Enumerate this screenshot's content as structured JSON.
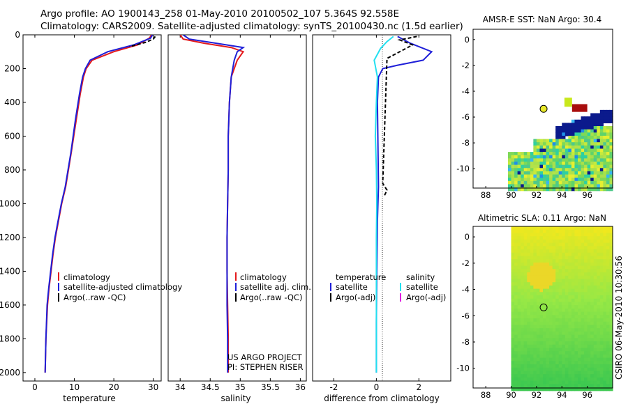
{
  "header": {
    "line1": "Argo profile: AO 1900143_258 01-May-2010 20100502_107 5.364S 92.558E",
    "line2": "Climatology: CARS2009. Satellite-adjusted climatology: synTS_20100430.nc (1.5d earlier)"
  },
  "credit": "CSIRO 06-May-2010 10:30:56",
  "colors": {
    "red": "#e41a1c",
    "blue": "#1f1fd8",
    "black": "#000000",
    "cyan": "#22e0f0",
    "magenta": "#e020e0"
  },
  "chart_data": [
    {
      "type": "line",
      "id": "temperature",
      "xlabel": "temperature",
      "ylabel": "",
      "xlim": [
        -3,
        32
      ],
      "ylim": [
        2050,
        0
      ],
      "y_inverted": true,
      "xticks": [
        0,
        10,
        20,
        30
      ],
      "yticks": [
        0,
        200,
        400,
        600,
        800,
        1000,
        1200,
        1400,
        1600,
        1800,
        2000
      ],
      "series": [
        {
          "name": "climatology",
          "color": "#e41a1c",
          "x": [
            29.6,
            29.0,
            26.0,
            20.0,
            14.5,
            13.0,
            12.3,
            11.5,
            10.5,
            9.2,
            7.8,
            6.8,
            6.0,
            5.2,
            4.6,
            4.1,
            3.6,
            3.2,
            2.8,
            2.6
          ],
          "y": [
            0,
            20,
            60,
            100,
            150,
            200,
            250,
            350,
            500,
            700,
            900,
            1000,
            1100,
            1200,
            1300,
            1400,
            1500,
            1600,
            1800,
            2000
          ]
        },
        {
          "name": "satellite-adjusted climatology",
          "color": "#1f1fd8",
          "x": [
            29.8,
            29.3,
            25.0,
            18.5,
            14.0,
            12.8,
            12.1,
            11.3,
            10.3,
            9.1,
            7.7,
            6.7,
            5.9,
            5.1,
            4.5,
            4.0,
            3.5,
            3.1,
            2.8,
            2.6
          ],
          "y": [
            0,
            20,
            60,
            100,
            150,
            200,
            250,
            350,
            500,
            700,
            900,
            1000,
            1100,
            1200,
            1300,
            1400,
            1500,
            1600,
            1800,
            2000
          ]
        },
        {
          "name": "Argo(..raw -QC)",
          "color": "#000000",
          "x": [
            30.5,
            30.0,
            28.0,
            24.0
          ],
          "y": [
            10,
            25,
            45,
            70
          ]
        }
      ],
      "legend": {
        "position": "bottom-right",
        "entries": [
          "climatology",
          "satellite-adjusted climatology",
          "Argo(..raw -QC)"
        ]
      }
    },
    {
      "type": "line",
      "id": "salinity",
      "xlabel": "salinity",
      "ylabel": "",
      "xlim": [
        33.8,
        36.1
      ],
      "ylim": [
        2050,
        0
      ],
      "y_inverted": true,
      "xticks": [
        34,
        34.5,
        35,
        35.5,
        36
      ],
      "tick_labels": [
        "34",
        "34.5",
        "35",
        "35.5",
        "36"
      ],
      "series": [
        {
          "name": "climatology",
          "color": "#e41a1c",
          "x": [
            34.0,
            34.05,
            34.4,
            34.85,
            35.05,
            34.95,
            34.85,
            34.82,
            34.8,
            34.8,
            34.79,
            34.78,
            34.78,
            34.79,
            34.8,
            34.8
          ],
          "y": [
            0,
            25,
            50,
            75,
            100,
            150,
            250,
            400,
            600,
            800,
            1000,
            1200,
            1400,
            1600,
            1800,
            2000
          ]
        },
        {
          "name": "satellite adj. clim.",
          "color": "#1f1fd8",
          "x": [
            34.05,
            34.15,
            34.6,
            35.05,
            34.95,
            34.9,
            34.85,
            34.82,
            34.8,
            34.8,
            34.79,
            34.78,
            34.78,
            34.78,
            34.79,
            34.79
          ],
          "y": [
            0,
            25,
            50,
            75,
            100,
            150,
            250,
            400,
            600,
            800,
            1000,
            1200,
            1400,
            1600,
            1800,
            2000
          ]
        }
      ],
      "annotations": [
        "US ARGO PROJECT",
        "PI: STEPHEN RISER"
      ],
      "legend": {
        "position": "bottom-right",
        "entries": [
          "climatology",
          "satellite adj. clim.",
          "Argo(..raw -QC)"
        ]
      }
    },
    {
      "type": "line",
      "id": "difference",
      "xlabel": "difference from climatology",
      "ylabel": "",
      "xlim": [
        -3.0,
        3.5
      ],
      "ylim": [
        2050,
        0
      ],
      "y_inverted": true,
      "xticks": [
        -2,
        0,
        2
      ],
      "tick_labels": [
        "-2",
        "0",
        "2"
      ],
      "series": [
        {
          "name": "temperature satellite",
          "color": "#1f1fd8",
          "x": [
            1.0,
            1.6,
            2.6,
            2.2,
            1.0,
            0.3,
            0.1,
            0.05,
            0.08,
            0.1,
            0.05,
            0.02,
            0.0,
            0.0
          ],
          "y": [
            10,
            50,
            100,
            150,
            180,
            200,
            250,
            400,
            700,
            900,
            1100,
            1400,
            1700,
            2000
          ]
        },
        {
          "name": "salinity satellite",
          "color": "#22e0f0",
          "x": [
            0.8,
            0.5,
            0.2,
            -0.1,
            0.05,
            0.0,
            -0.05,
            0.0,
            0.02,
            0.0,
            0.0,
            0.0,
            0.0
          ],
          "y": [
            10,
            40,
            80,
            150,
            250,
            400,
            600,
            800,
            1000,
            1200,
            1500,
            1800,
            2000
          ]
        },
        {
          "name": "temperature Argo(-adj)",
          "color": "#000000",
          "x": [
            1.9,
            1.1,
            1.7,
            0.5,
            0.3,
            0.5,
            0.35
          ],
          "y": [
            10,
            30,
            60,
            140,
            880,
            920,
            960
          ]
        }
      ],
      "legend": {
        "position": "bottom-left",
        "columns": [
          "temperature",
          "salinity"
        ],
        "entries": [
          "satellite",
          "Argo(-adj)",
          "satellite",
          "Argo(-adj)"
        ]
      }
    },
    {
      "type": "heatmap",
      "id": "sst-map",
      "title": "AMSR-E SST: NaN Argo: 30.4",
      "xlim": [
        87,
        98
      ],
      "ylim": [
        -11.5,
        0.8
      ],
      "xticks": [
        88,
        90,
        92,
        94,
        96
      ],
      "yticks": [
        0,
        -2,
        -4,
        -6,
        -8,
        -10
      ],
      "argo_position": {
        "lon": 92.558,
        "lat": -5.364
      }
    },
    {
      "type": "heatmap",
      "id": "sla-map",
      "title": "Altimetric SLA: 0.11 Argo: NaN",
      "xlim": [
        87,
        98
      ],
      "ylim": [
        -11.5,
        0.8
      ],
      "xticks": [
        88,
        90,
        92,
        94,
        96
      ],
      "yticks": [
        0,
        -2,
        -4,
        -6,
        -8,
        -10
      ],
      "argo_position": {
        "lon": 92.558,
        "lat": -5.364
      }
    }
  ]
}
